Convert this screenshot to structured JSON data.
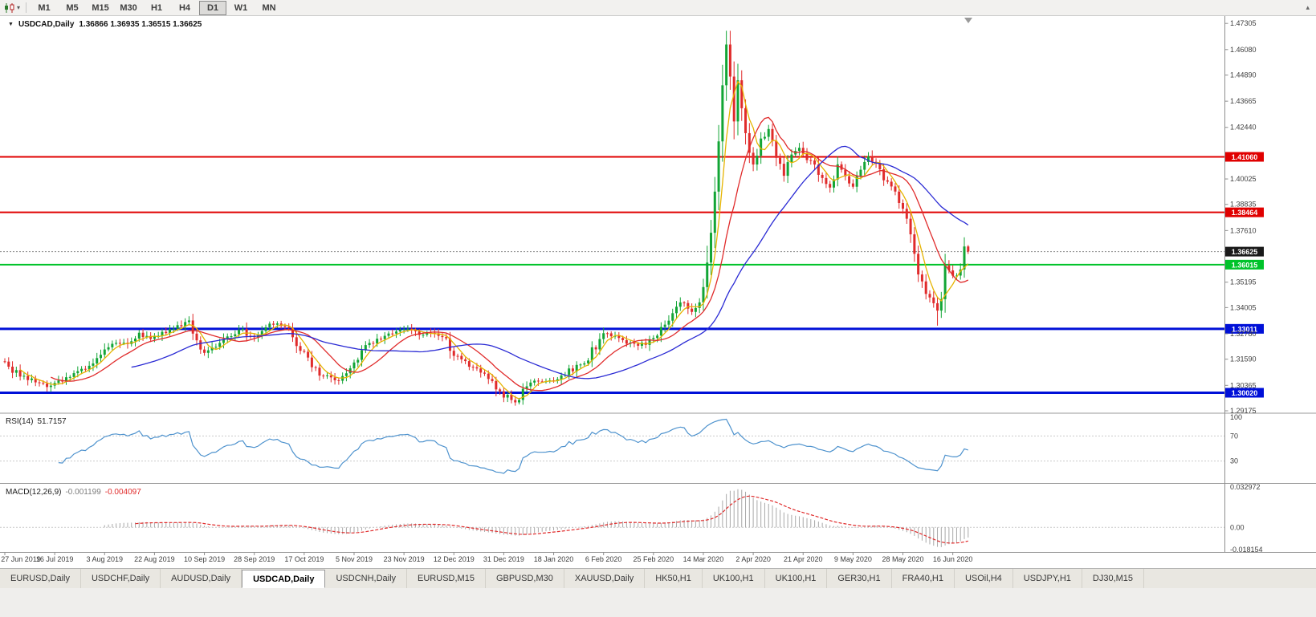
{
  "icons": {
    "dropdown_caret": "▾",
    "symbol_marker": "▼",
    "toolbar_overflow": "▴",
    "chart_window_icon": "candlestick-chart"
  },
  "toolbar": {
    "timeframes": [
      "M1",
      "M5",
      "M15",
      "M30",
      "H1",
      "H4",
      "D1",
      "W1",
      "MN"
    ],
    "active_timeframe": "D1"
  },
  "chart": {
    "symbol": "USDCAD,Daily",
    "ohlc_text": "1.36866 1.36935 1.36515 1.36625",
    "rsi_name": "RSI(14)",
    "rsi_value": "51.7157",
    "macd_name": "MACD(12,26,9)",
    "macd_main": "-0.001199",
    "macd_signal": "-0.004097"
  },
  "tabs": {
    "active_index": 3,
    "items": [
      "EURUSD,Daily",
      "USDCHF,Daily",
      "AUDUSD,Daily",
      "USDCAD,Daily",
      "USDCNH,Daily",
      "EURUSD,M15",
      "GBPUSD,M30",
      "XAUUSD,Daily",
      "HK50,H1",
      "UK100,H1",
      "UK100,H1",
      "GER30,H1",
      "FRA40,H1",
      "USOil,H4",
      "USDJPY,H1",
      "DJ30,M15"
    ],
    "note": "tabs shown left to right in bottom bar"
  },
  "colors": {
    "up": "#12a535",
    "down": "#e02b2b",
    "ma_fast": "#e6b400",
    "ma_mid": "#e02b2b",
    "ma_slow": "#2a2ad4",
    "rsi_line": "#4f93ce",
    "macd_hist": "#a8a8a8",
    "macd_signal": "#e02b2b",
    "axis_text": "#3c3c3c",
    "grid": "#c9c9c9",
    "divider": "#9a9a9a",
    "current_price_bg": "#1a1a1a"
  },
  "chart_data": {
    "type": "candlestick",
    "symbol": "USDCAD",
    "timeframe": "Daily",
    "num_bars": 252,
    "bars_per_date_label": 13,
    "date_labels": [
      "27 Jun 2019",
      "16 Jul 2019",
      "3 Aug 2019",
      "22 Aug 2019",
      "10 Sep 2019",
      "28 Sep 2019",
      "17 Oct 2019",
      "5 Nov 2019",
      "23 Nov 2019",
      "12 Dec 2019",
      "31 Dec 2019",
      "18 Jan 2020",
      "6 Feb 2020",
      "25 Feb 2020",
      "14 Mar 2020",
      "2 Apr 2020",
      "21 Apr 2020",
      "9 May 2020",
      "28 May 2020",
      "16 Jun 2020"
    ],
    "price_axis": {
      "top": 1.4765,
      "bottom": 1.291,
      "labels": [
        "1.47305",
        "1.46080",
        "1.44890",
        "1.43665",
        "1.42440",
        "1.40025",
        "1.38835",
        "1.37610",
        "1.35195",
        "1.34005",
        "1.32780",
        "1.31590",
        "1.30365",
        "1.29175"
      ]
    },
    "last_bar": {
      "open": 1.36866,
      "high": 1.36935,
      "low": 1.36515,
      "close": 1.36625
    },
    "current_price": {
      "value": 1.36625,
      "label": "1.36625"
    },
    "horizontal_levels": [
      {
        "price": 1.4106,
        "label": "1.41060",
        "color": "#e00000",
        "width": 2
      },
      {
        "price": 1.38464,
        "label": "1.38464",
        "color": "#e00000",
        "width": 2
      },
      {
        "price": 1.36015,
        "label": "1.36015",
        "color": "#00c32a",
        "width": 2
      },
      {
        "price": 1.33011,
        "label": "1.33011",
        "color": "#0010d8",
        "width": 3
      },
      {
        "price": 1.3002,
        "label": "1.30020",
        "color": "#0010d8",
        "width": 3
      }
    ],
    "moving_averages": [
      {
        "period": 5,
        "color": "#e6b400"
      },
      {
        "period": 13,
        "color": "#e02b2b"
      },
      {
        "period": 34,
        "color": "#2a2ad4"
      }
    ],
    "rsi": {
      "period": 14,
      "current": 51.7157,
      "levels": [
        30,
        70
      ],
      "axis_labels": [
        "100",
        "70",
        "30"
      ],
      "color": "#4f93ce"
    },
    "macd": {
      "fast": 12,
      "slow": 26,
      "signal_period": 9,
      "current_main": -0.001199,
      "current_signal": -0.004097,
      "range_top": 0.032972,
      "range_bottom": -0.018154,
      "axis_labels": [
        "0.032972",
        "0.00",
        "-0.018154"
      ]
    },
    "price_path": [
      [
        0,
        1.314
      ],
      [
        3,
        1.3095
      ],
      [
        7,
        1.306
      ],
      [
        11,
        1.3035
      ],
      [
        14,
        1.3055
      ],
      [
        18,
        1.3085
      ],
      [
        22,
        1.3125
      ],
      [
        26,
        1.3205
      ],
      [
        29,
        1.3245
      ],
      [
        32,
        1.322
      ],
      [
        35,
        1.327
      ],
      [
        39,
        1.326
      ],
      [
        42,
        1.329
      ],
      [
        45,
        1.331
      ],
      [
        48,
        1.3335
      ],
      [
        50,
        1.324
      ],
      [
        52,
        1.319
      ],
      [
        55,
        1.3225
      ],
      [
        58,
        1.326
      ],
      [
        62,
        1.329
      ],
      [
        65,
        1.325
      ],
      [
        68,
        1.332
      ],
      [
        71,
        1.333
      ],
      [
        74,
        1.33
      ],
      [
        78,
        1.318
      ],
      [
        82,
        1.3095
      ],
      [
        86,
        1.306
      ],
      [
        89,
        1.31
      ],
      [
        91,
        1.3155
      ],
      [
        95,
        1.323
      ],
      [
        99,
        1.327
      ],
      [
        104,
        1.33
      ],
      [
        108,
        1.3275
      ],
      [
        112,
        1.329
      ],
      [
        115,
        1.3245
      ],
      [
        117,
        1.318
      ],
      [
        121,
        1.3135
      ],
      [
        125,
        1.309
      ],
      [
        128,
        1.303
      ],
      [
        130,
        1.299
      ],
      [
        133,
        1.2965
      ],
      [
        136,
        1.304
      ],
      [
        140,
        1.306
      ],
      [
        143,
        1.305
      ],
      [
        147,
        1.3105
      ],
      [
        151,
        1.3145
      ],
      [
        154,
        1.322
      ],
      [
        156,
        1.329
      ],
      [
        160,
        1.3255
      ],
      [
        164,
        1.322
      ],
      [
        167,
        1.3235
      ],
      [
        169,
        1.3255
      ],
      [
        172,
        1.332
      ],
      [
        175,
        1.34
      ],
      [
        177,
        1.343
      ],
      [
        179,
        1.3385
      ],
      [
        181,
        1.342
      ],
      [
        183,
        1.362
      ],
      [
        184,
        1.375
      ],
      [
        185,
        1.392
      ],
      [
        186,
        1.415
      ],
      [
        187,
        1.445
      ],
      [
        188,
        1.464
      ],
      [
        189,
        1.45
      ],
      [
        190,
        1.43
      ],
      [
        191,
        1.448
      ],
      [
        192,
        1.435
      ],
      [
        193,
        1.42
      ],
      [
        195,
        1.408
      ],
      [
        197,
        1.418
      ],
      [
        199,
        1.423
      ],
      [
        201,
        1.41
      ],
      [
        203,
        1.402
      ],
      [
        205,
        1.413
      ],
      [
        207,
        1.416
      ],
      [
        209,
        1.41
      ],
      [
        211,
        1.406
      ],
      [
        213,
        1.4
      ],
      [
        215,
        1.395
      ],
      [
        217,
        1.406
      ],
      [
        219,
        1.401
      ],
      [
        221,
        1.397
      ],
      [
        223,
        1.404
      ],
      [
        225,
        1.4105
      ],
      [
        227,
        1.407
      ],
      [
        229,
        1.4
      ],
      [
        231,
        1.396
      ],
      [
        234,
        1.3845
      ],
      [
        236,
        1.376
      ],
      [
        238,
        1.356
      ],
      [
        240,
        1.348
      ],
      [
        242,
        1.342
      ],
      [
        243,
        1.339
      ],
      [
        244,
        1.343
      ],
      [
        245,
        1.362
      ],
      [
        246,
        1.358
      ],
      [
        247,
        1.356
      ],
      [
        248,
        1.3545
      ],
      [
        249,
        1.359
      ],
      [
        250,
        1.364
      ],
      [
        251,
        1.36625
      ]
    ],
    "forced_extremes": [
      {
        "bar": 183,
        "high": 1.369
      },
      {
        "bar": 188,
        "high": 1.4668
      },
      {
        "bar": 243,
        "low": 1.3316
      }
    ]
  }
}
